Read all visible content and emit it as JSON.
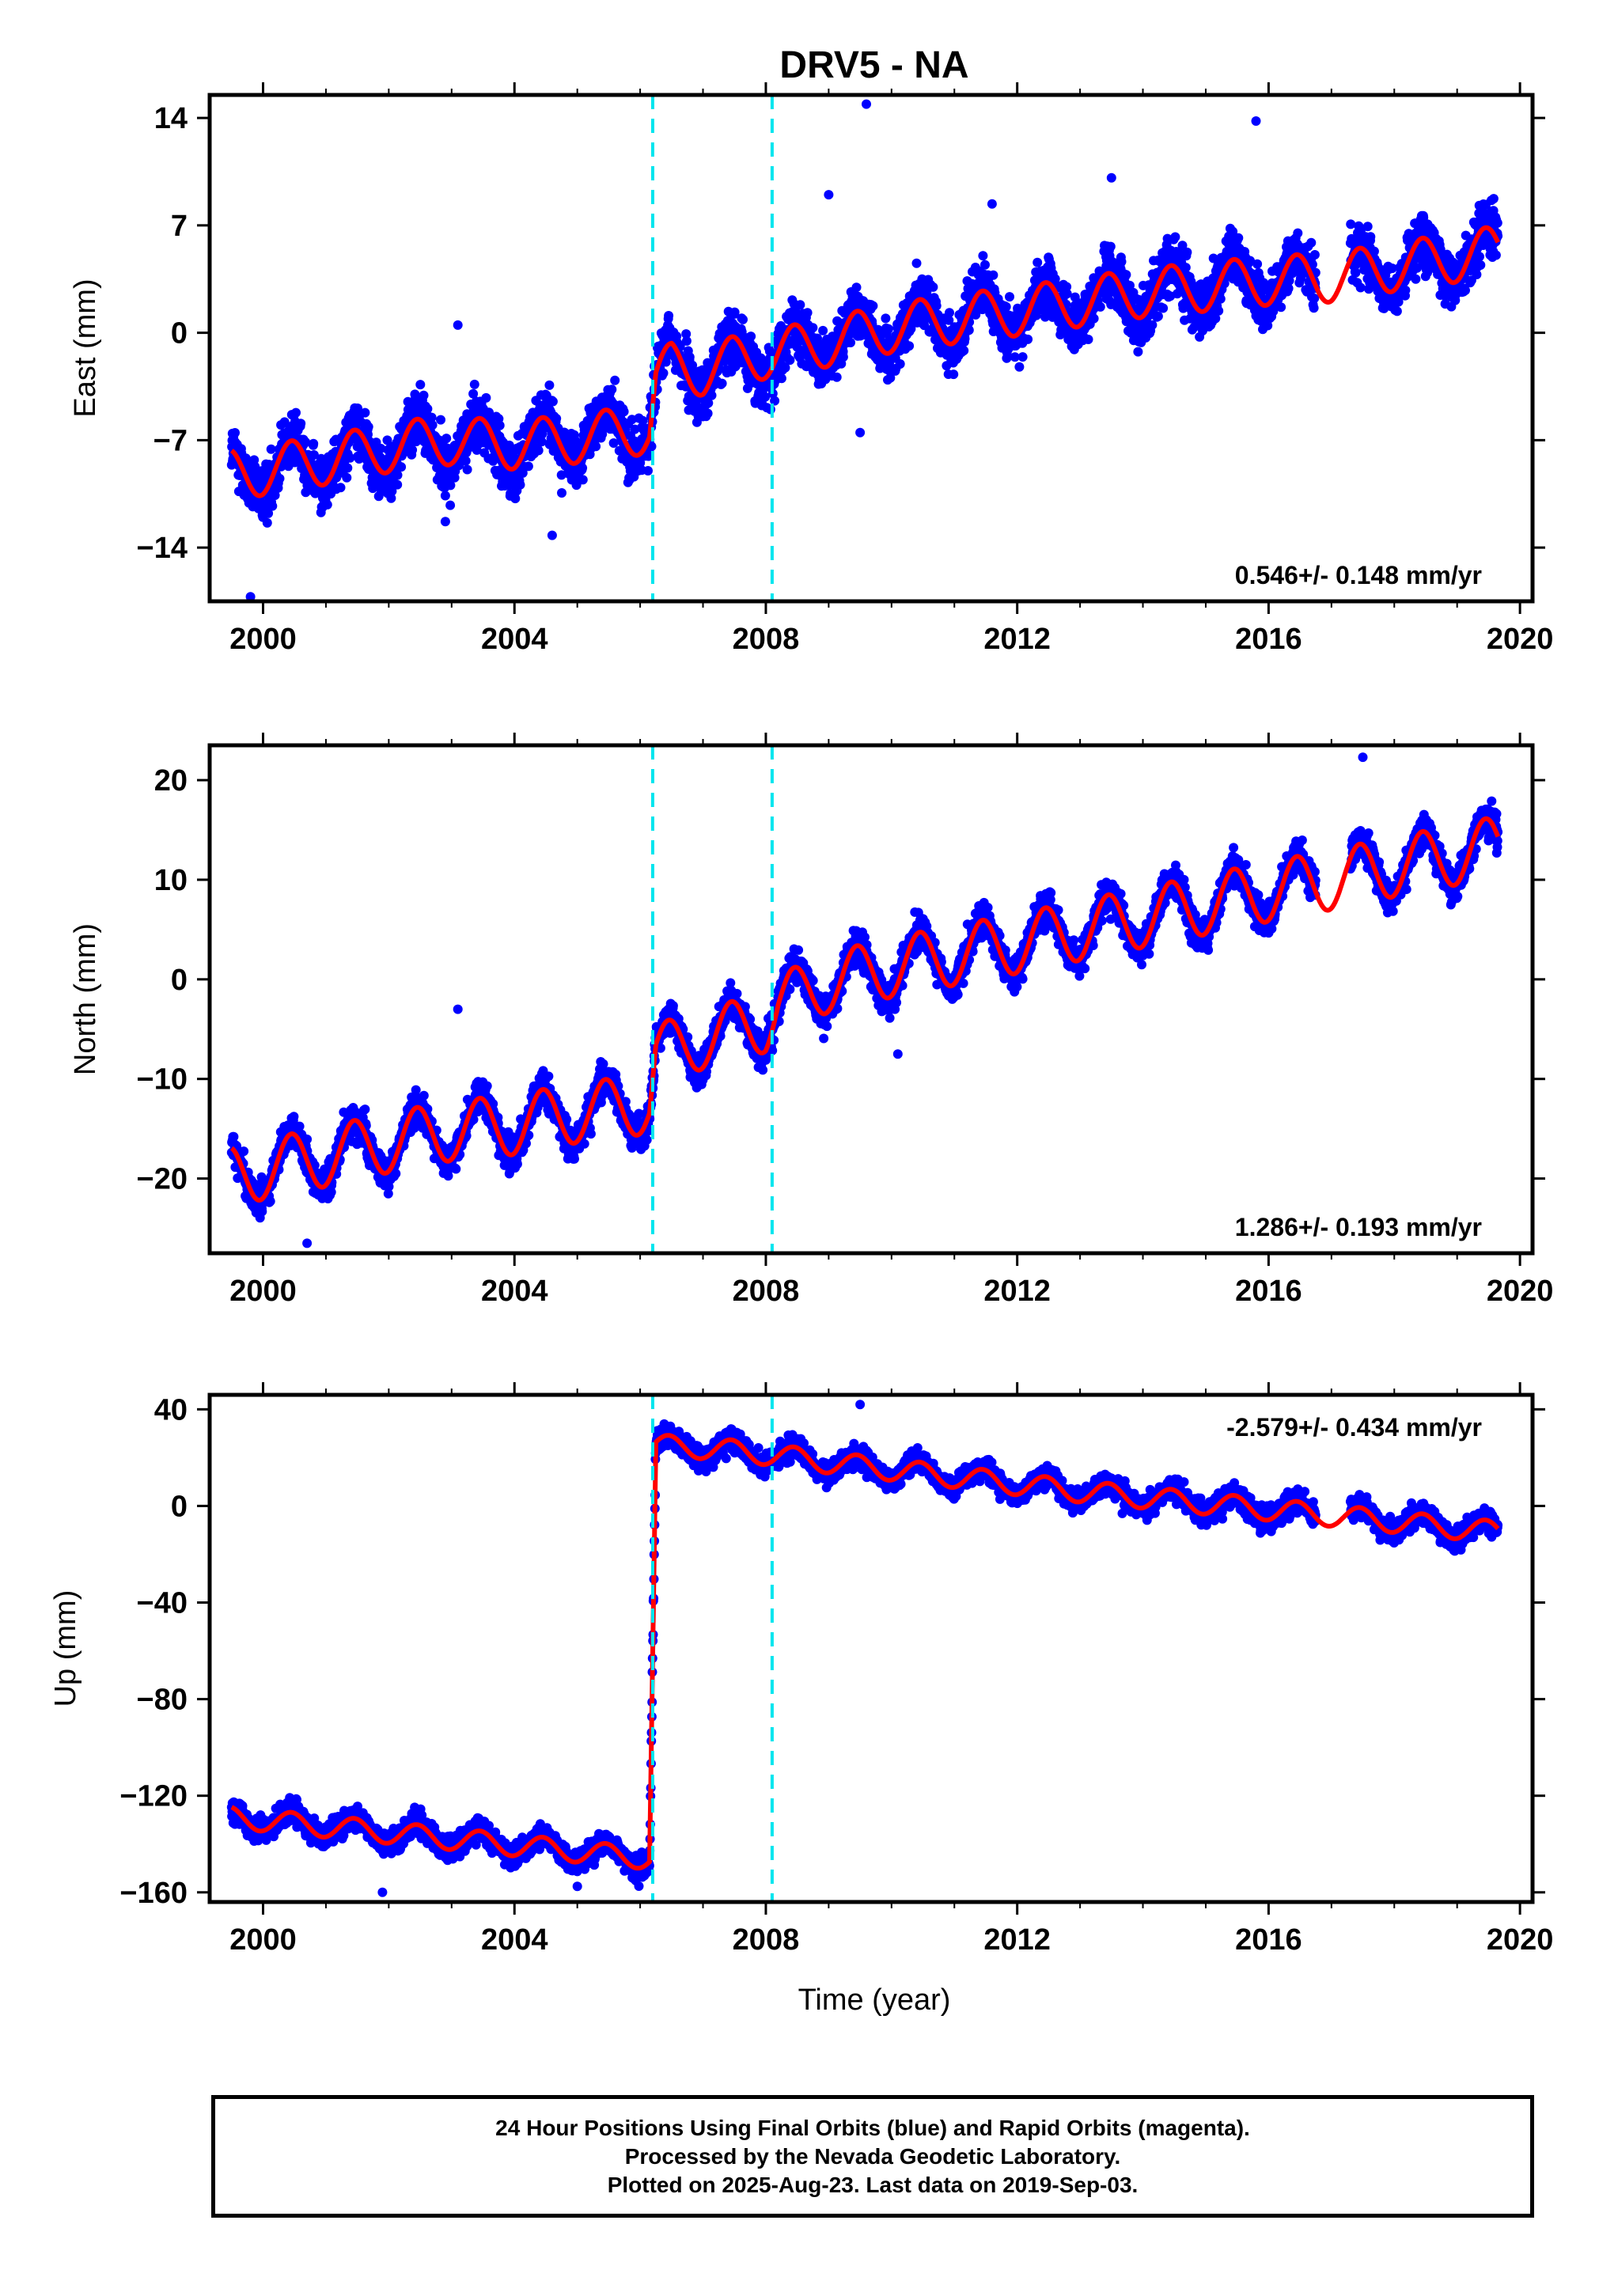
{
  "title": "DRV5 - NA",
  "xlabel": "Time (year)",
  "colors": {
    "data": "#0000ff",
    "model": "#ff0000",
    "offset_line": "#00e5ee",
    "frame": "#000000"
  },
  "footer": {
    "line1": "24 Hour Positions Using Final Orbits (blue) and Rapid Orbits (magenta).",
    "line2": "Processed by the Nevada Geodetic Laboratory.",
    "line3": "Plotted on 2025-Aug-23. Last data on 2019-Sep-03."
  },
  "chart_data": [
    {
      "type": "scatter",
      "ylabel": "East (mm)",
      "rate_text": "0.546+/- 0.148 mm/yr",
      "xlim": [
        1999.15,
        2020.2
      ],
      "ylim": [
        -17.5,
        15.5
      ],
      "xticks": [
        2000,
        2004,
        2008,
        2012,
        2016,
        2020
      ],
      "yticks": [
        -14,
        -7,
        0,
        7,
        14
      ],
      "offset_lines_x": [
        2006.2,
        2008.1
      ],
      "series": [
        {
          "values": [
            [
              1999.5,
              -9.2
            ],
            [
              2000.0,
              -9.0
            ],
            [
              2000.5,
              -8.6
            ],
            [
              2001.0,
              -8.3
            ],
            [
              2001.5,
              -7.9
            ],
            [
              2002.0,
              -7.5
            ],
            [
              2002.5,
              -7.2
            ],
            [
              2003.0,
              -7.0
            ],
            [
              2003.5,
              -7.2
            ],
            [
              2004.0,
              -7.3
            ],
            [
              2004.5,
              -7.1
            ],
            [
              2005.0,
              -6.9
            ],
            [
              2005.5,
              -6.6
            ],
            [
              2006.15,
              -6.3
            ],
            [
              2006.25,
              -3.1
            ],
            [
              2006.5,
              -2.2
            ],
            [
              2007.0,
              -2.5
            ],
            [
              2007.5,
              -1.8
            ],
            [
              2008.0,
              -1.4
            ],
            [
              2008.2,
              -1.3
            ],
            [
              2009.0,
              -0.6
            ],
            [
              2010.0,
              0.3
            ],
            [
              2011.0,
              0.9
            ],
            [
              2012.0,
              1.4
            ],
            [
              2013.0,
              2.0
            ],
            [
              2014.0,
              2.6
            ],
            [
              2015.0,
              3.0
            ],
            [
              2016.0,
              3.4
            ],
            [
              2017.0,
              3.6
            ],
            [
              2018.0,
              4.3
            ],
            [
              2019.0,
              4.9
            ],
            [
              2019.65,
              5.4
            ]
          ]
        },
        {
          "name": "Final Orbits",
          "values": []
        }
      ],
      "outliers": [
        [
          2009.6,
          14.9
        ],
        [
          2015.8,
          13.8
        ],
        [
          2009.0,
          9.0
        ],
        [
          2013.5,
          10.1
        ],
        [
          2011.6,
          8.4
        ],
        [
          2009.5,
          -6.5
        ],
        [
          1999.8,
          -17.2
        ],
        [
          2002.9,
          -12.3
        ],
        [
          2004.6,
          -13.2
        ],
        [
          2003.1,
          0.5
        ]
      ]
    },
    {
      "type": "scatter",
      "ylabel": "North (mm)",
      "rate_text": "1.286+/- 0.193 mm/yr",
      "xlim": [
        1999.15,
        2020.2
      ],
      "ylim": [
        -27.5,
        23.5
      ],
      "xticks": [
        2000,
        2004,
        2008,
        2012,
        2016,
        2020
      ],
      "yticks": [
        -20,
        -10,
        0,
        10,
        20
      ],
      "offset_lines_x": [
        2006.2,
        2008.1
      ],
      "series": [
        {
          "values": [
            [
              1999.5,
              -19.8
            ],
            [
              2000.0,
              -19.1
            ],
            [
              2001.0,
              -17.8
            ],
            [
              2002.0,
              -16.4
            ],
            [
              2003.0,
              -15.2
            ],
            [
              2004.0,
              -14.6
            ],
            [
              2005.0,
              -13.4
            ],
            [
              2006.15,
              -12.5
            ],
            [
              2006.25,
              -7.5
            ],
            [
              2007.0,
              -6.0
            ],
            [
              2008.0,
              -4.3
            ],
            [
              2008.2,
              -2.5
            ],
            [
              2009.0,
              -0.3
            ],
            [
              2010.0,
              1.2
            ],
            [
              2011.0,
              2.4
            ],
            [
              2012.0,
              3.6
            ],
            [
              2013.0,
              4.9
            ],
            [
              2014.0,
              6.2
            ],
            [
              2015.0,
              7.5
            ],
            [
              2016.0,
              8.8
            ],
            [
              2017.0,
              10.0
            ],
            [
              2018.0,
              11.3
            ],
            [
              2019.0,
              12.5
            ],
            [
              2019.65,
              13.4
            ]
          ]
        }
      ],
      "outliers": [
        [
          2017.5,
          22.3
        ],
        [
          2003.1,
          -3.0
        ],
        [
          2000.7,
          -26.5
        ],
        [
          2010.1,
          -7.5
        ]
      ]
    },
    {
      "type": "scatter",
      "ylabel": "Up (mm)",
      "rate_text": "-2.579+/- 0.434 mm/yr",
      "xlim": [
        1999.15,
        2020.2
      ],
      "ylim": [
        -164,
        46
      ],
      "xticks": [
        2000,
        2004,
        2008,
        2012,
        2016,
        2020
      ],
      "yticks": [
        -160,
        -120,
        -80,
        -40,
        0,
        40
      ],
      "offset_lines_x": [
        2006.2,
        2008.1
      ],
      "series": [
        {
          "values": [
            [
              1999.5,
              -129.0
            ],
            [
              2000.5,
              -131.5
            ],
            [
              2001.5,
              -134.0
            ],
            [
              2002.5,
              -136.6
            ],
            [
              2003.5,
              -139.2
            ],
            [
              2004.5,
              -141.8
            ],
            [
              2005.5,
              -144.4
            ],
            [
              2006.15,
              -146.0
            ],
            [
              2006.25,
              25.0
            ],
            [
              2007.0,
              24.0
            ],
            [
              2008.0,
              21.5
            ],
            [
              2009.0,
              18.0
            ],
            [
              2010.0,
              15.0
            ],
            [
              2011.0,
              12.0
            ],
            [
              2012.0,
              9.0
            ],
            [
              2013.0,
              6.0
            ],
            [
              2014.0,
              3.5
            ],
            [
              2015.0,
              1.0
            ],
            [
              2016.0,
              -1.5
            ],
            [
              2017.0,
              -4.0
            ],
            [
              2018.0,
              -6.6
            ],
            [
              2019.0,
              -9.2
            ],
            [
              2019.65,
              -10.8
            ]
          ]
        }
      ],
      "outliers": [
        [
          2009.5,
          42.0
        ],
        [
          2001.9,
          -160.0
        ],
        [
          2005.0,
          -157.5
        ]
      ]
    }
  ]
}
